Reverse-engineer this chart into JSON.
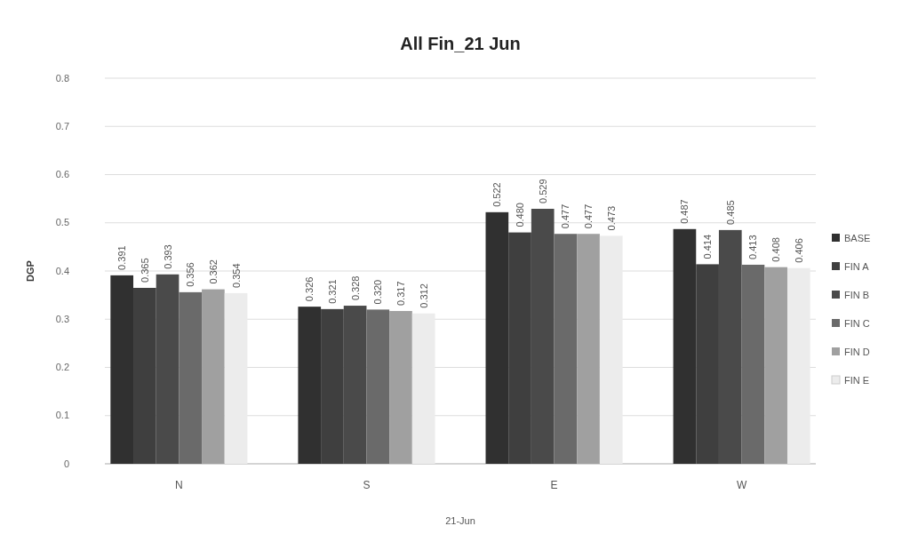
{
  "chart_data": {
    "type": "bar",
    "title": "All Fin_21 Jun",
    "xlabel": "21-Jun",
    "ylabel": "DGP",
    "categories": [
      "N",
      "S",
      "E",
      "W"
    ],
    "series": [
      {
        "name": "BASE",
        "color": "#303030",
        "values": [
          0.391,
          0.326,
          0.522,
          0.487
        ],
        "value_labels": [
          "0.391",
          "0.326",
          "0.522",
          "0.487"
        ]
      },
      {
        "name": "FIN A",
        "color": "#3f3f3f",
        "values": [
          0.365,
          0.321,
          0.48,
          0.414
        ],
        "value_labels": [
          "0.365",
          "0.321",
          "0.480",
          "0.414"
        ]
      },
      {
        "name": "FIN B",
        "color": "#4a4a4a",
        "values": [
          0.393,
          0.328,
          0.529,
          0.485
        ],
        "value_labels": [
          "0.393",
          "0.328",
          "0.529",
          "0.485"
        ]
      },
      {
        "name": "FIN C",
        "color": "#6a6a6a",
        "values": [
          0.356,
          0.32,
          0.477,
          0.413
        ],
        "value_labels": [
          "0.356",
          "0.320",
          "0.477",
          "0.413"
        ]
      },
      {
        "name": "FIN D",
        "color": "#a0a0a0",
        "values": [
          0.362,
          0.317,
          0.477,
          0.408
        ],
        "value_labels": [
          "0.362",
          "0.317",
          "0.477",
          "0.408"
        ]
      },
      {
        "name": "FIN E",
        "color": "#ececec",
        "values": [
          0.354,
          0.312,
          0.473,
          0.406
        ],
        "value_labels": [
          "0.354",
          "0.312",
          "0.473",
          "0.406"
        ]
      }
    ],
    "ylim": [
      0,
      0.8
    ],
    "yticks": [
      0,
      0.1,
      0.2,
      0.3,
      0.4,
      0.5,
      0.6,
      0.7,
      0.8
    ],
    "grid": "y",
    "legend": "right"
  }
}
